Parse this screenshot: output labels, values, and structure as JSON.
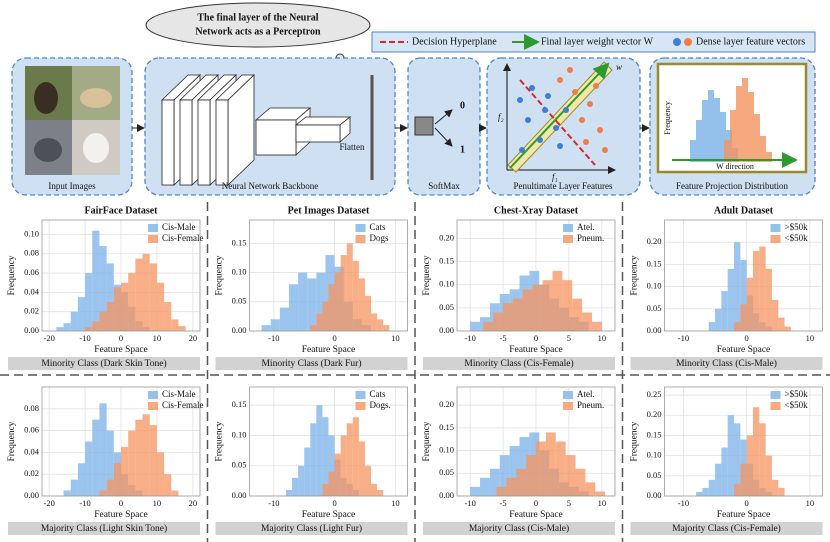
{
  "diagram": {
    "cloud_lines": [
      "The final layer of the Neural",
      "Network acts as a Perceptron"
    ],
    "legend": [
      "Decision Hyperplane",
      "Final layer weight vector W",
      "Dense layer feature vectors"
    ],
    "input_label": "Input Images",
    "backbone_label": "Neural Network Backbone",
    "flatten": "Flatten",
    "softmax_label": "SoftMax",
    "softmax_outputs": [
      "0",
      "1"
    ],
    "penultimate_label": "Penultimate Layer Features",
    "penultimate_axes": [
      "f₁",
      "f₂",
      "w"
    ],
    "projection_label": "Feature Projection Distribution",
    "projection_ylabel": "Frequency",
    "projection_xlabel": "W direction"
  },
  "chart_data": [
    {
      "type": "histogram",
      "title": "FairFace Dataset",
      "xlabel": "Feature Space",
      "ylabel": "Frequency",
      "caption": "Minority Class (Dark Skin Tone)",
      "grid": true,
      "legend": "upper right",
      "xlim": [
        -22,
        22
      ],
      "xticks": [
        -20,
        -10,
        0,
        10,
        20
      ],
      "ylim": [
        0,
        0.115
      ],
      "yticks": [
        {
          "value": 0,
          "label": "0.00"
        },
        {
          "value": 0.02,
          "label": "0.02"
        },
        {
          "value": 0.04,
          "label": "0.04"
        },
        {
          "value": 0.06,
          "label": "0.06"
        },
        {
          "value": 0.08,
          "label": "0.08"
        },
        {
          "value": 0.1,
          "label": "0.10"
        }
      ],
      "series": [
        {
          "name": "Cis-Male",
          "color": "#7ab2e8",
          "bins": [
            -18,
            -16,
            -14,
            -12,
            -10,
            -8,
            -6,
            -4,
            -2,
            0,
            2,
            4,
            6,
            8
          ],
          "values": [
            0.004,
            0.008,
            0.02,
            0.035,
            0.06,
            0.104,
            0.088,
            0.07,
            0.048,
            0.04,
            0.025,
            0.01,
            0.004
          ]
        },
        {
          "name": "Cis-Female",
          "color": "#f5935f",
          "bins": [
            -10,
            -8,
            -6,
            -4,
            -2,
            0,
            2,
            4,
            6,
            8,
            10,
            12,
            14,
            16,
            18
          ],
          "values": [
            0.004,
            0.01,
            0.02,
            0.03,
            0.045,
            0.05,
            0.06,
            0.075,
            0.08,
            0.07,
            0.05,
            0.03,
            0.012,
            0.005
          ]
        }
      ]
    },
    {
      "type": "histogram",
      "title": "Pet Images Dataset",
      "xlabel": "Feature Space",
      "ylabel": "Frequency",
      "caption": "Minority Class (Dark Fur)",
      "grid": true,
      "legend": "upper right",
      "xlim": [
        -14,
        12
      ],
      "xticks": [
        -10,
        0,
        10
      ],
      "ylim": [
        0,
        0.19
      ],
      "yticks": [
        {
          "value": 0,
          "label": "0.00"
        },
        {
          "value": 0.05,
          "label": "0.05"
        },
        {
          "value": 0.1,
          "label": "0.10"
        },
        {
          "value": 0.15,
          "label": "0.15"
        }
      ],
      "series": [
        {
          "name": "Cats",
          "color": "#7ab2e8",
          "bins": [
            -12,
            -10.5,
            -9,
            -7.5,
            -6,
            -4.5,
            -3,
            -1.5,
            0,
            1.5,
            3,
            4.5,
            6
          ],
          "values": [
            0.01,
            0.02,
            0.04,
            0.08,
            0.1,
            0.09,
            0.1,
            0.13,
            0.11,
            0.05,
            0.02,
            0.01
          ]
        },
        {
          "name": "Dogs",
          "color": "#f5935f",
          "bins": [
            -4,
            -3,
            -2,
            -1,
            0,
            1,
            2,
            3,
            4,
            5,
            6,
            7,
            8,
            9
          ],
          "values": [
            0.01,
            0.03,
            0.05,
            0.08,
            0.1,
            0.13,
            0.15,
            0.12,
            0.09,
            0.06,
            0.03,
            0.02,
            0.01
          ]
        }
      ]
    },
    {
      "type": "histogram",
      "title": "Chest-Xray Dataset",
      "xlabel": "Feature Space",
      "ylabel": "Frequency",
      "caption": "Minority Class (Cis-Female)",
      "grid": true,
      "legend": "upper right",
      "xlim": [
        -12,
        12
      ],
      "xticks": [
        -10,
        -5,
        0,
        5,
        10
      ],
      "ylim": [
        0,
        0.24
      ],
      "yticks": [
        {
          "value": 0,
          "label": "0.00"
        },
        {
          "value": 0.05,
          "label": "0.05"
        },
        {
          "value": 0.1,
          "label": "0.10"
        },
        {
          "value": 0.15,
          "label": "0.15"
        },
        {
          "value": 0.2,
          "label": "0.20"
        }
      ],
      "series": [
        {
          "name": "Atel.",
          "color": "#7ab2e8",
          "bins": [
            -10,
            -8.5,
            -7,
            -5.5,
            -4,
            -2.5,
            -1,
            0.5,
            2,
            3.5,
            5,
            6.5,
            8
          ],
          "values": [
            0.02,
            0.03,
            0.06,
            0.08,
            0.09,
            0.12,
            0.13,
            0.1,
            0.07,
            0.05,
            0.03,
            0.02
          ]
        },
        {
          "name": "Pneum.",
          "color": "#f5935f",
          "bins": [
            -8,
            -6.5,
            -5,
            -3.5,
            -2,
            -0.5,
            1,
            2.5,
            4,
            5.5,
            7,
            8.5,
            10
          ],
          "values": [
            0.02,
            0.04,
            0.06,
            0.07,
            0.09,
            0.1,
            0.11,
            0.13,
            0.11,
            0.07,
            0.04,
            0.02
          ]
        }
      ]
    },
    {
      "type": "histogram",
      "title": "Adult Dataset",
      "xlabel": "Feature Space",
      "ylabel": "Frequency",
      "caption": "Minority Class (Cis-Male)",
      "grid": true,
      "legend": "upper right",
      "xlim": [
        -13,
        12
      ],
      "xticks": [
        -10,
        0,
        10
      ],
      "ylim": [
        0,
        0.25
      ],
      "yticks": [
        {
          "value": 0,
          "label": "0.00"
        },
        {
          "value": 0.05,
          "label": "0.05"
        },
        {
          "value": 0.1,
          "label": "0.10"
        },
        {
          "value": 0.15,
          "label": "0.15"
        },
        {
          "value": 0.2,
          "label": "0.20"
        }
      ],
      "series": [
        {
          "name": ">$50k",
          "color": "#7ab2e8",
          "bins": [
            -6,
            -5,
            -4,
            -3,
            -2,
            -1,
            0,
            1,
            2,
            3,
            4
          ],
          "values": [
            0.02,
            0.05,
            0.09,
            0.14,
            0.2,
            0.16,
            0.08,
            0.04,
            0.02,
            0.01
          ]
        },
        {
          "name": "<$50k",
          "color": "#f5935f",
          "bins": [
            -2,
            -1,
            0,
            1,
            2,
            3,
            4,
            5,
            6,
            7
          ],
          "values": [
            0.02,
            0.06,
            0.12,
            0.18,
            0.19,
            0.14,
            0.07,
            0.03,
            0.01
          ]
        }
      ]
    },
    {
      "type": "histogram",
      "xlabel": "Feature Space",
      "ylabel": "Frequency",
      "caption": "Majority Class (Light Skin Tone)",
      "grid": true,
      "legend": "upper right",
      "xlim": [
        -22,
        22
      ],
      "xticks": [
        -20,
        -10,
        0,
        10,
        20
      ],
      "ylim": [
        0,
        0.1
      ],
      "yticks": [
        {
          "value": 0,
          "label": "0.00"
        },
        {
          "value": 0.02,
          "label": "0.02"
        },
        {
          "value": 0.04,
          "label": "0.04"
        },
        {
          "value": 0.06,
          "label": "0.06"
        },
        {
          "value": 0.08,
          "label": "0.08"
        }
      ],
      "series": [
        {
          "name": "Cis-Male",
          "color": "#7ab2e8",
          "bins": [
            -16,
            -14,
            -12,
            -10,
            -8,
            -6,
            -4,
            -2,
            0,
            2,
            4,
            6
          ],
          "values": [
            0.005,
            0.015,
            0.03,
            0.05,
            0.07,
            0.085,
            0.06,
            0.04,
            0.02,
            0.01,
            0.005
          ]
        },
        {
          "name": "Cis-Female",
          "color": "#f5935f",
          "bins": [
            -6,
            -4,
            -2,
            0,
            2,
            4,
            6,
            8,
            10,
            12,
            14,
            16
          ],
          "values": [
            0.005,
            0.015,
            0.03,
            0.045,
            0.06,
            0.07,
            0.075,
            0.065,
            0.04,
            0.02,
            0.005
          ]
        }
      ]
    },
    {
      "type": "histogram",
      "xlabel": "Feature Space",
      "ylabel": "Frequency",
      "caption": "Majority Class (Light Fur)",
      "grid": true,
      "legend": "upper right",
      "xlim": [
        -14,
        12
      ],
      "xticks": [
        -10,
        0,
        10
      ],
      "ylim": [
        0,
        0.18
      ],
      "yticks": [
        {
          "value": 0,
          "label": "0.00"
        },
        {
          "value": 0.05,
          "label": "0.05"
        },
        {
          "value": 0.1,
          "label": "0.10"
        },
        {
          "value": 0.15,
          "label": "0.15"
        }
      ],
      "series": [
        {
          "name": "Cats",
          "color": "#7ab2e8",
          "bins": [
            -8,
            -7,
            -6,
            -5,
            -4,
            -3,
            -2,
            -1,
            0,
            1,
            2,
            3,
            4
          ],
          "values": [
            0.01,
            0.03,
            0.05,
            0.08,
            0.12,
            0.15,
            0.13,
            0.1,
            0.06,
            0.03,
            0.02,
            0.01
          ]
        },
        {
          "name": "Dogs.",
          "color": "#f5935f",
          "bins": [
            -2,
            -1,
            0,
            1,
            2,
            3,
            4,
            5,
            6,
            7,
            8
          ],
          "values": [
            0.02,
            0.04,
            0.07,
            0.1,
            0.12,
            0.13,
            0.09,
            0.05,
            0.02,
            0.01
          ]
        }
      ]
    },
    {
      "type": "histogram",
      "xlabel": "Feature Space",
      "ylabel": "Frequency",
      "caption": "Majority Class (Cis-Male)",
      "grid": true,
      "legend": "upper right",
      "xlim": [
        -12,
        12
      ],
      "xticks": [
        -10,
        -5,
        0,
        5,
        10
      ],
      "ylim": [
        0,
        0.24
      ],
      "yticks": [
        {
          "value": 0,
          "label": "0.00"
        },
        {
          "value": 0.05,
          "label": "0.05"
        },
        {
          "value": 0.1,
          "label": "0.10"
        },
        {
          "value": 0.15,
          "label": "0.15"
        },
        {
          "value": 0.2,
          "label": "0.20"
        }
      ],
      "series": [
        {
          "name": "Atel.",
          "color": "#7ab2e8",
          "bins": [
            -10,
            -8.5,
            -7,
            -5.5,
            -4,
            -2.5,
            -1,
            0.5,
            2,
            3.5,
            5,
            6.5,
            8
          ],
          "values": [
            0.02,
            0.04,
            0.06,
            0.09,
            0.11,
            0.13,
            0.14,
            0.1,
            0.06,
            0.03,
            0.02,
            0.01
          ]
        },
        {
          "name": "Pneum.",
          "color": "#f5935f",
          "bins": [
            -6,
            -4.5,
            -3,
            -1.5,
            0,
            1.5,
            3,
            4.5,
            6,
            7.5,
            9,
            10.5
          ],
          "values": [
            0.02,
            0.04,
            0.06,
            0.09,
            0.12,
            0.14,
            0.12,
            0.09,
            0.06,
            0.03,
            0.01
          ]
        }
      ]
    },
    {
      "type": "histogram",
      "xlabel": "Feature Space",
      "ylabel": "Frequency",
      "caption": "Majority Class (Cis-Female)",
      "grid": true,
      "legend": "upper right",
      "xlim": [
        -13,
        12
      ],
      "xticks": [
        -10,
        0,
        10
      ],
      "ylim": [
        0,
        0.27
      ],
      "yticks": [
        {
          "value": 0,
          "label": "0.00"
        },
        {
          "value": 0.05,
          "label": "0.05"
        },
        {
          "value": 0.1,
          "label": "0.10"
        },
        {
          "value": 0.15,
          "label": "0.15"
        },
        {
          "value": 0.2,
          "label": "0.20"
        },
        {
          "value": 0.25,
          "label": "0.25"
        }
      ],
      "series": [
        {
          "name": ">$50k",
          "color": "#7ab2e8",
          "bins": [
            -8,
            -7,
            -6,
            -5,
            -4,
            -3,
            -2,
            -1,
            0,
            1,
            2,
            3,
            4
          ],
          "values": [
            0.01,
            0.02,
            0.04,
            0.08,
            0.12,
            0.2,
            0.18,
            0.14,
            0.08,
            0.04,
            0.02,
            0.01
          ]
        },
        {
          "name": "<$50k",
          "color": "#f5935f",
          "bins": [
            -2,
            -1,
            0,
            1,
            2,
            3,
            4,
            5,
            6
          ],
          "values": [
            0.03,
            0.08,
            0.15,
            0.22,
            0.18,
            0.1,
            0.04,
            0.02
          ]
        }
      ]
    }
  ]
}
